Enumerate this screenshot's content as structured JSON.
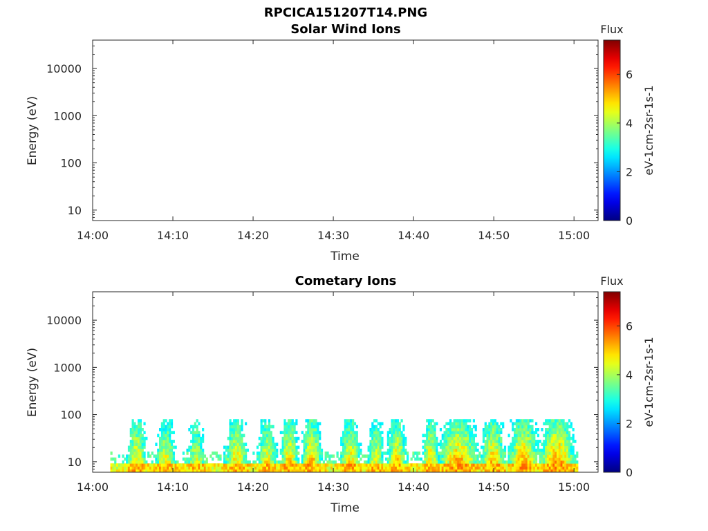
{
  "figure": {
    "filename": "RPCICA151207T14.PNG"
  },
  "chart_data": [
    {
      "type": "heatmap",
      "title": "Solar Wind Ions",
      "xlabel": "Time",
      "ylabel": "Energy (eV)",
      "y_scale": "log",
      "ylim": [
        6,
        40000
      ],
      "x_ticks": [
        "14:00",
        "14:10",
        "14:20",
        "14:30",
        "14:40",
        "14:50",
        "15:00"
      ],
      "xlim_minutes": [
        0,
        63
      ],
      "y_ticks": [
        "10",
        "100",
        "1000",
        "10000"
      ],
      "colorbar": {
        "title": "Flux",
        "label": "eV-1cm-2sr-1s-1",
        "ticks": [
          "0",
          "2",
          "4",
          "6"
        ],
        "range": [
          0,
          7.4
        ],
        "colormap": "jet"
      },
      "cells": []
    },
    {
      "type": "heatmap",
      "title": "Cometary Ions",
      "xlabel": "Time",
      "ylabel": "Energy (eV)",
      "y_scale": "log",
      "ylim": [
        6,
        40000
      ],
      "x_ticks": [
        "14:00",
        "14:10",
        "14:20",
        "14:30",
        "14:40",
        "14:50",
        "15:00"
      ],
      "xlim_minutes": [
        0,
        63
      ],
      "y_ticks": [
        "10",
        "100",
        "1000",
        "10000"
      ],
      "colorbar": {
        "title": "Flux",
        "label": "eV-1cm-2sr-1s-1",
        "ticks": [
          "0",
          "2",
          "4",
          "6"
        ],
        "range": [
          0,
          7.4
        ],
        "colormap": "jet"
      },
      "data_extent": {
        "x_minutes": [
          2.2,
          60.5
        ],
        "energy_ev": [
          6,
          80
        ]
      },
      "bursts": [
        {
          "t": 5.4,
          "w": 1.6,
          "peak": 5.2
        },
        {
          "t": 9.0,
          "w": 1.6,
          "peak": 5.0
        },
        {
          "t": 12.8,
          "w": 1.4,
          "peak": 4.8
        },
        {
          "t": 17.8,
          "w": 1.8,
          "peak": 5.2
        },
        {
          "t": 21.6,
          "w": 1.6,
          "peak": 5.0
        },
        {
          "t": 24.4,
          "w": 1.4,
          "peak": 5.4
        },
        {
          "t": 27.2,
          "w": 1.6,
          "peak": 5.5
        },
        {
          "t": 32.0,
          "w": 1.6,
          "peak": 5.2
        },
        {
          "t": 35.2,
          "w": 1.4,
          "peak": 4.9
        },
        {
          "t": 37.8,
          "w": 1.6,
          "peak": 5.3
        },
        {
          "t": 42.0,
          "w": 1.4,
          "peak": 5.2
        },
        {
          "t": 45.5,
          "w": 3.2,
          "peak": 5.6
        },
        {
          "t": 49.8,
          "w": 2.0,
          "peak": 5.4
        },
        {
          "t": 53.6,
          "w": 2.4,
          "peak": 5.6
        },
        {
          "t": 57.8,
          "w": 2.8,
          "peak": 5.8
        }
      ]
    }
  ]
}
